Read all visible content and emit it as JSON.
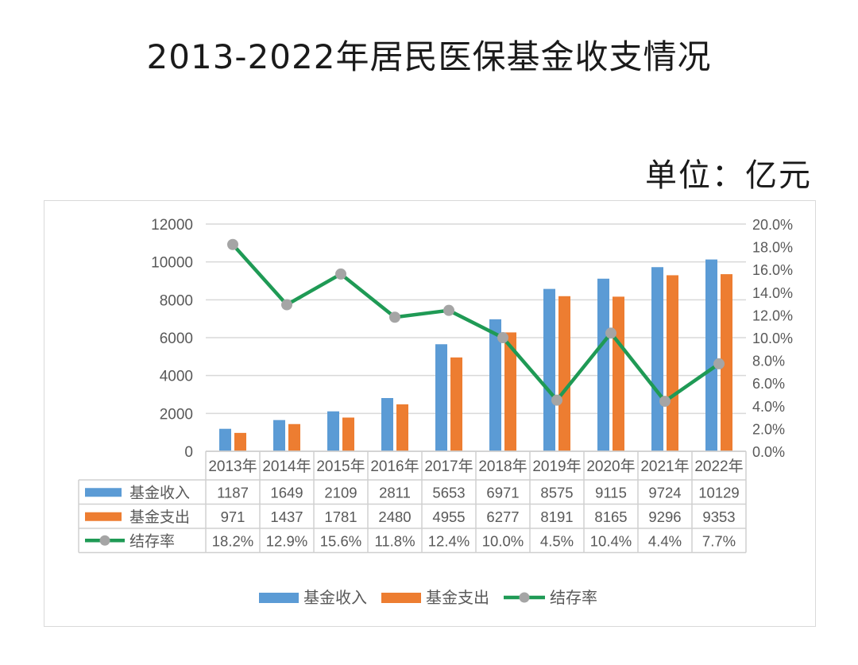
{
  "title": "2013-2022年居民医保基金收支情况",
  "unit_label": "单位：亿元",
  "colors": {
    "income": "#5b9bd5",
    "expense": "#ed7d31",
    "rate_line": "#1f9a55",
    "rate_marker": "#a5a5a5",
    "grid": "#d9d9d9",
    "axis_text": "#595959"
  },
  "chart_data": {
    "type": "bar",
    "title": "2013-2022年居民医保基金收支情况",
    "subtitle": "单位：亿元",
    "categories": [
      "2013年",
      "2014年",
      "2015年",
      "2016年",
      "2017年",
      "2018年",
      "2019年",
      "2020年",
      "2021年",
      "2022年"
    ],
    "series": [
      {
        "name": "基金收入",
        "type": "bar",
        "axis": "left",
        "color": "#5b9bd5",
        "values": [
          1187,
          1649,
          2109,
          2811,
          5653,
          6971,
          8575,
          9115,
          9724,
          10129
        ]
      },
      {
        "name": "基金支出",
        "type": "bar",
        "axis": "left",
        "color": "#ed7d31",
        "values": [
          971,
          1437,
          1781,
          2480,
          4955,
          6277,
          8191,
          8165,
          9296,
          9353
        ]
      },
      {
        "name": "结存率",
        "type": "line",
        "axis": "right",
        "color": "#1f9a55",
        "marker_color": "#a5a5a5",
        "values": [
          18.2,
          12.9,
          15.6,
          11.8,
          12.4,
          10.0,
          4.5,
          10.4,
          4.4,
          7.7
        ],
        "labels": [
          "18.2%",
          "12.9%",
          "15.6%",
          "11.8%",
          "12.4%",
          "10.0%",
          "4.5%",
          "10.4%",
          "4.4%",
          "7.7%"
        ]
      }
    ],
    "ylim": [
      0,
      12000
    ],
    "y_ticks": [
      "0",
      "2000",
      "4000",
      "6000",
      "8000",
      "10000",
      "12000"
    ],
    "y2lim": [
      0,
      20
    ],
    "y2_ticks": [
      "0.0%",
      "2.0%",
      "4.0%",
      "6.0%",
      "8.0%",
      "10.0%",
      "12.0%",
      "14.0%",
      "16.0%",
      "18.0%",
      "20.0%"
    ],
    "xlabel": "",
    "ylabel": "",
    "y2label": "",
    "grid": true,
    "legend_position": "bottom",
    "data_table": true
  }
}
